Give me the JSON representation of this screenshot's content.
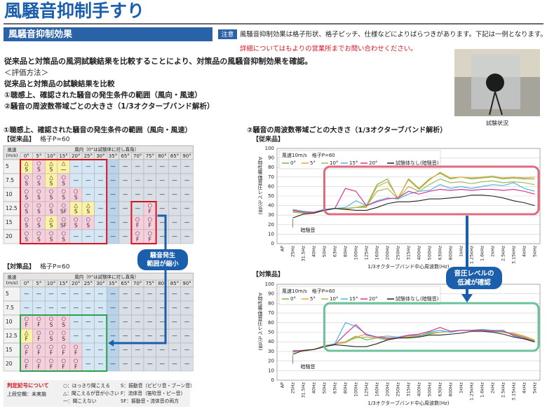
{
  "header": {
    "title": "風騒音抑制手すり"
  },
  "section": {
    "title": "風騒音抑制効果",
    "notice_label": "注意",
    "notice": "風騒音抑制効果は格子形状、格子ピッチ、仕様などによりばらつきがあります。下記は一例となります。",
    "contact": "詳細についてはもよりの営業所までお問い合わせください。"
  },
  "intro": {
    "lead": "従来品と対策品の風洞試験結果を比較することにより、対策品の風騒音抑制効果を確認。",
    "items": [
      "＜評価方法＞",
      "従来品と対策品の試験結果を比較",
      "①聴感上、確認された騒音の発生条件の範囲（風向・風速）",
      "②騒音の周波数帯域ごとの大きさ（1/3オクターブバンド解析）"
    ]
  },
  "photo": {
    "caption": "試験状況"
  },
  "left": {
    "title": "①聴感上、確認された騒音の発生条件の範囲（風向・風速）",
    "speed_header": "風速",
    "speed_unit": "(m/s)",
    "direction_header": "風向（0°は試験体に対し直角）",
    "angles": [
      "0°",
      "5°",
      "10°",
      "15°",
      "20°",
      "25°",
      "30°",
      "35°",
      "65°",
      "70°",
      "75°",
      "80°",
      "85°",
      "90°"
    ],
    "speeds": [
      "5",
      "7.5",
      "10",
      "12.5",
      "15",
      "20"
    ],
    "tables": [
      {
        "label": "【従来品】",
        "spec": "格子P=60",
        "rows": [
          [
            [
              "△",
              "S"
            ],
            [
              "○",
              "S"
            ],
            [
              "△",
              "S"
            ],
            [
              "△",
              "—"
            ],
            "—",
            "—",
            "—",
            "—",
            "—",
            "—",
            "—",
            "—",
            "—",
            "—"
          ],
          [
            [
              "○",
              "S"
            ],
            [
              "○",
              "S"
            ],
            [
              "△",
              "S"
            ],
            [
              "○",
              "S"
            ],
            "—",
            "—",
            "—",
            "—",
            "—",
            "—",
            "—",
            "—",
            "—",
            "—"
          ],
          [
            [
              "○",
              "S"
            ],
            [
              "○",
              "S"
            ],
            [
              "○",
              "S"
            ],
            [
              "○",
              "S"
            ],
            [
              "○",
              "S"
            ],
            "—",
            "—",
            "—",
            "—",
            "—",
            "—",
            "—",
            "—",
            "—"
          ],
          [
            [
              "○",
              "S"
            ],
            [
              "○",
              "S"
            ],
            [
              "○",
              "S"
            ],
            [
              "○",
              "SF"
            ],
            [
              "△",
              "S"
            ],
            [
              "△",
              "S"
            ],
            "—",
            "—",
            "—",
            "—",
            [
              "○",
              "F"
            ],
            "—",
            "—",
            "—"
          ],
          [
            [
              "○",
              "S"
            ],
            [
              "○",
              "S"
            ],
            [
              "△",
              "S"
            ],
            [
              "○",
              "SF"
            ],
            [
              "○",
              "S"
            ],
            [
              "○",
              "S"
            ],
            "—",
            "—",
            "—",
            [
              "○",
              "F"
            ],
            [
              "○",
              "F"
            ],
            "—",
            "—",
            "—"
          ],
          [
            [
              "○",
              "S"
            ],
            [
              "○",
              "S"
            ],
            [
              "○",
              "S"
            ],
            [
              "○",
              "S"
            ],
            "—",
            "—",
            "—",
            "—",
            "—",
            [
              "○",
              "F"
            ],
            [
              "○",
              "F"
            ],
            "—",
            "—",
            "—"
          ]
        ]
      },
      {
        "label": "【対策品】",
        "spec": "格子P=60",
        "rows": [
          [
            "—",
            "—",
            "—",
            "—",
            "—",
            "—",
            "—",
            "—",
            "—",
            "—",
            "—",
            "—",
            "—",
            "—"
          ],
          [
            "—",
            "—",
            "—",
            "—",
            "—",
            "—",
            "—",
            "—",
            "—",
            "—",
            "—",
            "—",
            "—",
            "—"
          ],
          [
            [
              "○",
              "F"
            ],
            [
              "○",
              "F"
            ],
            [
              "○",
              "S"
            ],
            [
              "○",
              "S"
            ],
            "—",
            "—",
            "—",
            "—",
            "—",
            "—",
            "—",
            "—",
            "—",
            "—"
          ],
          [
            [
              "△",
              "F"
            ],
            [
              "○",
              "F"
            ],
            [
              "○",
              "S"
            ],
            [
              "○",
              "S"
            ],
            "—",
            "—",
            "—",
            "—",
            "—",
            "—",
            "—",
            "—",
            "—",
            "—"
          ],
          [
            [
              "○",
              "F"
            ],
            [
              "○",
              "F"
            ],
            [
              "○",
              "F"
            ],
            [
              "○",
              "F"
            ],
            [
              "○",
              "F"
            ],
            "—",
            "—",
            "—",
            "—",
            "—",
            "—",
            "—",
            "—",
            "—"
          ],
          [
            [
              "○",
              "F"
            ],
            [
              "○",
              "F"
            ],
            [
              "○",
              "F"
            ],
            [
              "○",
              "F"
            ],
            [
              "○",
              "F"
            ],
            "—",
            "—",
            "—",
            "—",
            "—",
            "—",
            "—",
            "—",
            "—"
          ]
        ]
      }
    ],
    "callout": [
      "騒音発生",
      "範囲が縮小"
    ],
    "legend": {
      "title": "判定記号について",
      "note": "上段空欄：未実施",
      "items": [
        "○：はっきり聞こえる",
        "△：聞こえるが音が小さい",
        "—：聞こえない",
        "S：振動音（ビビリ音・ブーン音）",
        "F：流体音（笛吹音・ピー音）",
        "SF：振動音・流体音の両方"
      ]
    }
  },
  "right": {
    "title": "②騒音の周波数帯域ごとの大きさ（1/3オクターブバンド解析）",
    "labels": [
      "【従来品】",
      "【対策品】"
    ],
    "callout": [
      "音圧レベルの",
      "低減が確認"
    ]
  },
  "chart_data": [
    {
      "type": "line",
      "legend_title": "風速10m/s　格子P=60",
      "ylabel": "A特性等価音圧レベル(dB)",
      "xlabel": "1/3オクターブバンド中心周波数(Hz)",
      "annotation": "暗騒音",
      "grid": true,
      "categories": [
        "AP",
        "25Hz",
        "31.5Hz",
        "40Hz",
        "50Hz",
        "63Hz",
        "80Hz",
        "100Hz",
        "125Hz",
        "160Hz",
        "200Hz",
        "250Hz",
        "315Hz",
        "400Hz",
        "500Hz",
        "630Hz",
        "800Hz",
        "1kHz",
        "1.25kHz",
        "1.6kHz",
        "2kHz",
        "2.5kHz",
        "3.15kHz",
        "4kHz",
        "5kHz"
      ],
      "ylim": [
        0,
        100
      ],
      "yticks": [
        0,
        10,
        20,
        30,
        40,
        50,
        60,
        70,
        80,
        90,
        100
      ],
      "series": [
        {
          "name": "0°",
          "color": "#7ab648",
          "values": [
            null,
            35,
            33,
            33,
            36,
            37,
            37,
            38,
            40,
            62,
            68,
            47,
            68,
            58,
            68,
            74,
            68,
            70,
            68,
            69,
            70,
            68,
            69,
            68,
            68
          ]
        },
        {
          "name": "5°",
          "color": "#e3a63a",
          "values": [
            null,
            34,
            33,
            32,
            35,
            37,
            36,
            38,
            38,
            60,
            65,
            48,
            67,
            57,
            67,
            75,
            69,
            70,
            69,
            70,
            71,
            69,
            70,
            69,
            70
          ]
        },
        {
          "name": "10°",
          "color": "#a6b85a",
          "values": [
            null,
            33,
            32,
            33,
            36,
            37,
            37,
            38,
            39,
            55,
            58,
            47,
            60,
            55,
            62,
            68,
            64,
            65,
            63,
            65,
            66,
            64,
            65,
            64,
            62
          ]
        },
        {
          "name": "15°",
          "color": "#4fb4e0",
          "values": [
            null,
            36,
            34,
            33,
            36,
            37,
            38,
            45,
            40,
            45,
            48,
            47,
            52,
            55,
            56,
            62,
            58,
            60,
            58,
            60,
            62,
            61,
            64,
            58,
            55
          ]
        },
        {
          "name": "20°",
          "color": "#d6398f",
          "values": [
            null,
            35,
            33,
            33,
            35,
            37,
            58,
            55,
            40,
            44,
            47,
            48,
            55,
            52,
            55,
            57,
            56,
            57,
            56,
            57,
            57,
            56,
            57,
            55,
            52
          ]
        },
        {
          "name": "試験体なし(暗騒音)",
          "color": "#222222",
          "values": [
            null,
            27,
            31,
            32,
            35,
            37,
            36,
            35,
            35,
            38,
            42,
            44,
            44,
            45,
            47,
            47,
            48,
            49,
            51,
            51,
            50,
            48,
            45,
            43,
            40
          ]
        }
      ]
    },
    {
      "type": "line",
      "legend_title": "風速10m/s　格子P=60",
      "ylabel": "A特性等価音圧レベル(dB)",
      "xlabel": "1/3オクターブバンド中心周波数(Hz)",
      "annotation": "暗騒音",
      "grid": true,
      "categories": [
        "AP",
        "25Hz",
        "31.5Hz",
        "40Hz",
        "50Hz",
        "63Hz",
        "80Hz",
        "100Hz",
        "125Hz",
        "160Hz",
        "200Hz",
        "250Hz",
        "315Hz",
        "400Hz",
        "500Hz",
        "630Hz",
        "800Hz",
        "1kHz",
        "1.25kHz",
        "1.6kHz",
        "2kHz",
        "2.5kHz",
        "3.15kHz",
        "4kHz",
        "5kHz"
      ],
      "ylim": [
        0,
        100
      ],
      "yticks": [
        0,
        10,
        20,
        30,
        40,
        50,
        60,
        70,
        80,
        90,
        100
      ],
      "series": [
        {
          "name": "0°",
          "color": "#7ab648",
          "values": [
            null,
            30,
            31,
            32,
            36,
            38,
            40,
            46,
            42,
            44,
            43,
            44,
            45,
            46,
            49,
            50,
            51,
            52,
            52,
            52,
            51,
            50,
            48,
            45,
            41
          ]
        },
        {
          "name": "5°",
          "color": "#e3a63a",
          "values": [
            null,
            29,
            31,
            32,
            36,
            38,
            39,
            45,
            48,
            45,
            44,
            44,
            46,
            47,
            48,
            50,
            51,
            52,
            52,
            52,
            52,
            50,
            49,
            46,
            42
          ]
        },
        {
          "name": "10°",
          "color": "#a6b85a",
          "values": [
            null,
            30,
            30,
            32,
            35,
            38,
            40,
            44,
            45,
            44,
            42,
            44,
            45,
            46,
            48,
            50,
            51,
            52,
            52,
            52,
            51,
            50,
            48,
            45,
            41
          ]
        },
        {
          "name": "15°",
          "color": "#4fb4e0",
          "values": [
            null,
            31,
            31,
            32,
            35,
            38,
            60,
            56,
            48,
            45,
            46,
            45,
            47,
            46,
            50,
            52,
            50,
            52,
            52,
            53,
            52,
            52,
            46,
            44,
            40
          ]
        },
        {
          "name": "20°",
          "color": "#d6398f",
          "values": [
            null,
            30,
            31,
            32,
            35,
            37,
            48,
            58,
            47,
            45,
            44,
            44,
            47,
            48,
            51,
            55,
            51,
            52,
            52,
            52,
            51,
            51,
            47,
            44,
            40
          ]
        },
        {
          "name": "試験体なし(暗騒音)",
          "color": "#222222",
          "values": [
            null,
            27,
            31,
            32,
            35,
            37,
            36,
            35,
            35,
            38,
            42,
            44,
            44,
            45,
            47,
            47,
            48,
            49,
            51,
            51,
            50,
            48,
            45,
            43,
            40
          ]
        }
      ]
    }
  ]
}
